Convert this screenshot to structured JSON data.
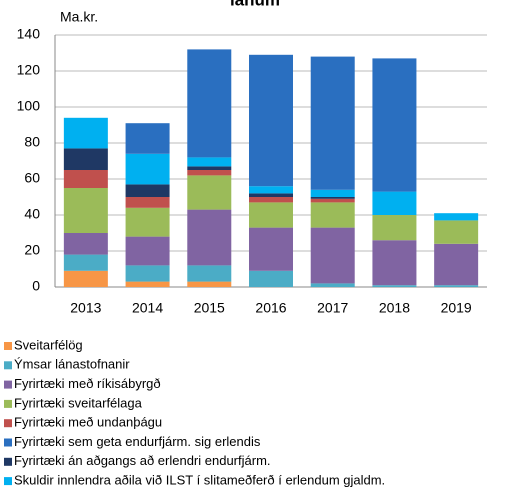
{
  "chart_data": {
    "type": "stacked_bar",
    "title": "lánum",
    "y_unit": "Ma.kr.",
    "categories": [
      "2013",
      "2014",
      "2015",
      "2016",
      "2017",
      "2018",
      "2019"
    ],
    "series": [
      {
        "name": "Sveitarfélög",
        "color": "#f79646",
        "values": [
          9,
          3,
          3,
          0,
          0,
          0,
          0
        ]
      },
      {
        "name": "Ýmsar lánastofnanir",
        "color": "#4bacc6",
        "values": [
          9,
          9,
          9,
          9,
          2,
          1,
          1
        ]
      },
      {
        "name": "Fyrirtæki með ríkisábyrgð",
        "color": "#8064a2",
        "values": [
          12,
          16,
          31,
          24,
          31,
          25,
          23
        ]
      },
      {
        "name": "Fyrirtæki sveitarfélaga",
        "color": "#9bbb59",
        "values": [
          25,
          16,
          19,
          14,
          14,
          14,
          13
        ]
      },
      {
        "name": "Fyrirtæki með undanþágu",
        "color": "#c0504d",
        "values": [
          10,
          6,
          3,
          3,
          2,
          0,
          0
        ]
      },
      {
        "name": "Fyrirtæki sem geta endurfjárm. sig erlendis",
        "color": "#2a6fc0",
        "values": [
          0,
          17,
          60,
          73,
          74,
          74,
          0
        ]
      },
      {
        "name": "Fyrirtæki án aðgangs að erlendri endurfjárm.",
        "color": "#1f3864",
        "values": [
          12,
          7,
          2,
          2,
          1,
          0,
          0
        ]
      },
      {
        "name": "Skuldir innlendra aðila við ILST í slitameðferð í erlendum gjaldm.",
        "color": "#00b0f0",
        "values": [
          17,
          17,
          5,
          4,
          4,
          13,
          4
        ]
      }
    ],
    "ylim": [
      0,
      140
    ],
    "yticks": [
      0,
      20,
      40,
      60,
      80,
      100,
      120,
      140
    ],
    "grid": true
  }
}
